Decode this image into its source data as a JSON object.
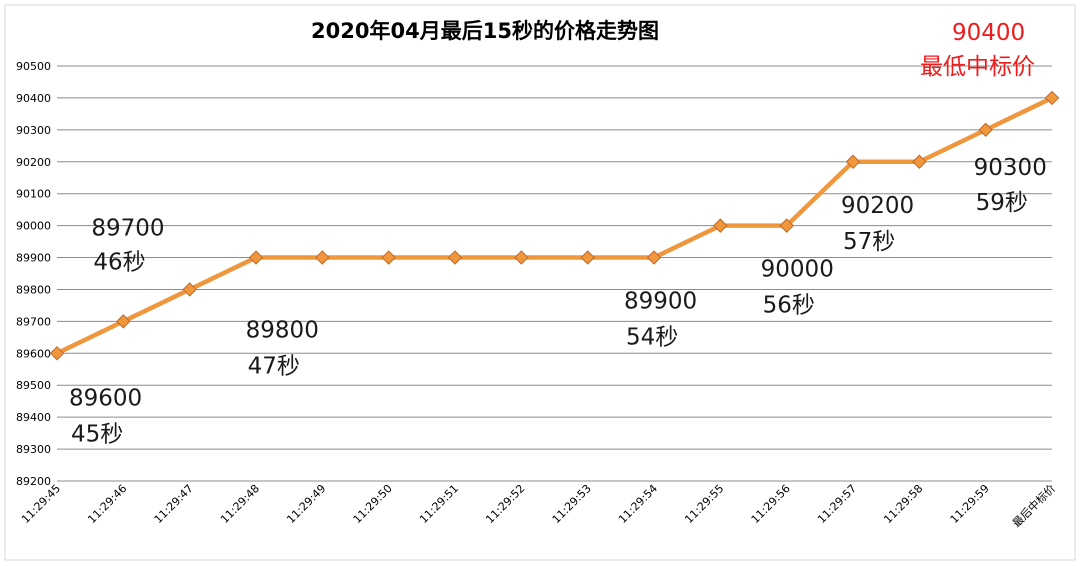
{
  "chart_data": {
    "type": "line",
    "title": "2020年04月最后15秒的价格走势图",
    "xlabel": "",
    "ylabel": "",
    "ylim": [
      89200,
      90500
    ],
    "ytick_step": 100,
    "grid": true,
    "legend": "none",
    "categories": [
      "11:29:45",
      "11:29:46",
      "11:29:47",
      "11:29:48",
      "11:29:49",
      "11:29:50",
      "11:29:51",
      "11:29:52",
      "11:29:53",
      "11:29:54",
      "11:29:55",
      "11:29:56",
      "11:29:57",
      "11:29:58",
      "11:29:59",
      "最后中标价"
    ],
    "series": [
      {
        "values": [
          89600,
          89700,
          89800,
          89900,
          89900,
          89900,
          89900,
          89900,
          89900,
          89900,
          90000,
          90000,
          90200,
          90200,
          90300,
          90400
        ]
      }
    ],
    "annotations": [
      {
        "index": 0,
        "value": "89600",
        "sub": "45秒"
      },
      {
        "index": 1,
        "value": "89700",
        "sub": "46秒"
      },
      {
        "index": 2,
        "value": "89800",
        "sub": "47秒"
      },
      {
        "index": 9,
        "value": "89900",
        "sub": "54秒"
      },
      {
        "index": 11,
        "value": "90000",
        "sub": "56秒"
      },
      {
        "index": 12,
        "value": "90200",
        "sub": "57秒"
      },
      {
        "index": 14,
        "value": "90300",
        "sub": "59秒"
      },
      {
        "index": 15,
        "value": "90400",
        "sub": "最低中标价",
        "highlight": true
      }
    ],
    "colors": {
      "line": "#f0963c",
      "marker": "#f0963c",
      "marker_edge": "#c0692a",
      "grid": "#8c8c8c",
      "annotation": "#1a1a1a",
      "highlight": "#ee1c1c"
    }
  }
}
